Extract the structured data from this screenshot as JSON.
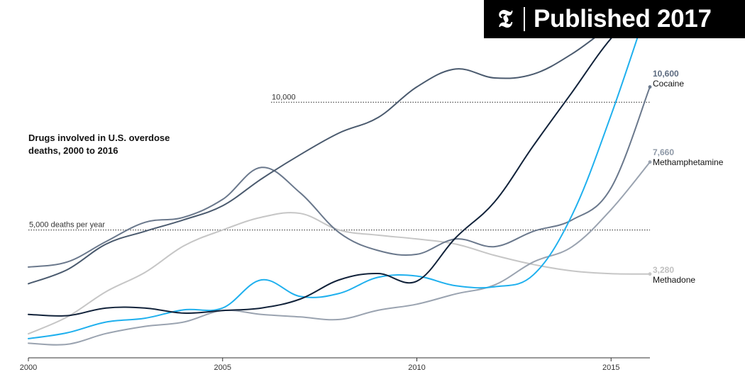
{
  "badge": {
    "logo_glyph": "𝕿",
    "text": "Published 2017",
    "logo_icon": "nyt-t-icon"
  },
  "chart_data": {
    "type": "line",
    "title": "Drugs involved in U.S. overdose deaths, 2000 to 2016",
    "xlabel": "",
    "ylabel": "",
    "xlim": [
      2000,
      2016
    ],
    "ylim": [
      0,
      14000
    ],
    "x_ticks": [
      "2000",
      "2005",
      "2010",
      "2015"
    ],
    "x": [
      2000,
      2001,
      2002,
      2003,
      2004,
      2005,
      2006,
      2007,
      2008,
      2009,
      2010,
      2011,
      2012,
      2013,
      2014,
      2015,
      2016
    ],
    "reference_lines": [
      {
        "value": 10000,
        "label": "10,000"
      },
      {
        "value": 5000,
        "label": "5,000 deaths per year"
      }
    ],
    "series": [
      {
        "name": "",
        "color": "#4a5a6e",
        "values": [
          2900,
          3450,
          4450,
          4950,
          5400,
          5950,
          7000,
          7950,
          8800,
          9400,
          10600,
          11300,
          10950,
          11100,
          11900,
          13000,
          14000
        ]
      },
      {
        "name": "Cocaine",
        "color": "#6a788c",
        "values": [
          3550,
          3750,
          4550,
          5300,
          5500,
          6200,
          7450,
          6450,
          4900,
          4200,
          4050,
          4650,
          4350,
          4950,
          5400,
          6650,
          10600
        ]
      },
      {
        "name": "",
        "color": "#11223a",
        "values": [
          1700,
          1650,
          1950,
          1950,
          1750,
          1850,
          1950,
          2300,
          3050,
          3300,
          3000,
          4700,
          6100,
          8300,
          10400,
          12500,
          14000
        ]
      },
      {
        "name": "",
        "color": "#1fb0ee",
        "values": [
          750,
          980,
          1400,
          1550,
          1880,
          1950,
          3050,
          2400,
          2520,
          3150,
          3200,
          2820,
          2780,
          3250,
          5600,
          9500,
          14000
        ]
      },
      {
        "name": "Methamphetamine",
        "color": "#9aa3b0",
        "values": [
          570,
          530,
          950,
          1230,
          1400,
          1850,
          1700,
          1600,
          1500,
          1860,
          2100,
          2500,
          2850,
          3750,
          4350,
          5800,
          7660
        ]
      },
      {
        "name": "Methadone",
        "color": "#c6c6c6",
        "values": [
          940,
          1600,
          2590,
          3340,
          4380,
          5000,
          5500,
          5650,
          5000,
          4800,
          4650,
          4450,
          4010,
          3650,
          3400,
          3290,
          3280
        ]
      }
    ],
    "end_labels": [
      {
        "value": "10,600",
        "name": "Cocaine"
      },
      {
        "value": "7,660",
        "name": "Methamphetamine"
      },
      {
        "value": "3,280",
        "name": "Methadone"
      }
    ],
    "grid": false,
    "legend": "inline-end-labels"
  }
}
